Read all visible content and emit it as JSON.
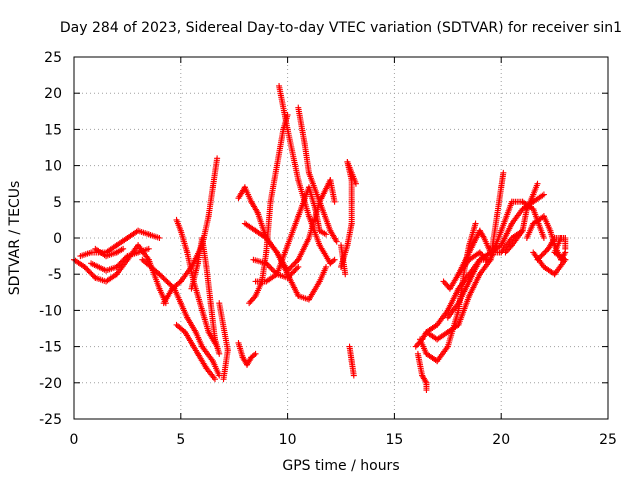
{
  "chart_data": {
    "type": "scatter",
    "title": "Day 284 of 2023, Sidereal Day-to-day VTEC variation (SDTVAR) for receiver sin1",
    "xlabel": "GPS time / hours",
    "ylabel": "SDTVAR / TECUs",
    "xlim": [
      0,
      25
    ],
    "ylim": [
      -25,
      25
    ],
    "xticks": [
      0,
      5,
      10,
      15,
      20,
      25
    ],
    "yticks": [
      -25,
      -20,
      -15,
      -10,
      -5,
      0,
      5,
      10,
      15,
      20,
      25
    ],
    "xtick_labels": [
      "0",
      "5",
      "10",
      "15",
      "20",
      "25"
    ],
    "ytick_labels": [
      "-25",
      "-20",
      "-15",
      "-10",
      "-5",
      "0",
      "5",
      "10",
      "15",
      "20",
      "25"
    ],
    "grid": true,
    "marker": "+",
    "series": [
      {
        "name": "sin1",
        "color": "#ff0000",
        "tracks": [
          [
            [
              0,
              -3
            ],
            [
              0.5,
              -4
            ],
            [
              1,
              -5.5
            ],
            [
              1.5,
              -6
            ],
            [
              2,
              -5
            ],
            [
              2.5,
              -3
            ],
            [
              3,
              -1
            ],
            [
              3.5,
              -3
            ],
            [
              4,
              -7
            ],
            [
              4.3,
              -9
            ]
          ],
          [
            [
              0.3,
              -2.5
            ],
            [
              0.8,
              -2
            ],
            [
              1.5,
              -2
            ],
            [
              2,
              -1
            ],
            [
              2.5,
              0
            ],
            [
              3,
              1
            ],
            [
              3.5,
              0.5
            ],
            [
              4,
              0
            ]
          ],
          [
            [
              0.8,
              -3.5
            ],
            [
              1.5,
              -4.5
            ],
            [
              2,
              -4
            ],
            [
              2.5,
              -2.5
            ],
            [
              3,
              -2
            ],
            [
              3.5,
              -1.5
            ]
          ],
          [
            [
              1,
              -1.5
            ],
            [
              1.5,
              -2.5
            ],
            [
              2,
              -2
            ],
            [
              2.3,
              -1.5
            ]
          ],
          [
            [
              4.2,
              -9
            ],
            [
              4.6,
              -7
            ],
            [
              5,
              -6
            ],
            [
              5.5,
              -4
            ],
            [
              6,
              -1
            ],
            [
              6.3,
              3
            ],
            [
              6.5,
              7
            ],
            [
              6.7,
              11
            ]
          ],
          [
            [
              3.2,
              -3
            ],
            [
              4,
              -5
            ],
            [
              4.7,
              -7
            ],
            [
              5,
              -9
            ],
            [
              5.3,
              -11
            ],
            [
              5.7,
              -13
            ],
            [
              6,
              -15
            ],
            [
              6.5,
              -17
            ],
            [
              6.8,
              -19
            ]
          ],
          [
            [
              4.8,
              -12
            ],
            [
              5.2,
              -13
            ],
            [
              5.8,
              -16
            ],
            [
              6.2,
              -18
            ],
            [
              6.6,
              -19.5
            ]
          ],
          [
            [
              5.5,
              -7
            ],
            [
              5.8,
              -3.5
            ],
            [
              6,
              0
            ],
            [
              6.2,
              -4
            ],
            [
              6.4,
              -9
            ],
            [
              6.6,
              -14
            ],
            [
              6.8,
              -16
            ]
          ],
          [
            [
              4.8,
              2.5
            ],
            [
              5,
              1
            ],
            [
              5.3,
              -2
            ],
            [
              5.6,
              -6
            ],
            [
              6,
              -10
            ],
            [
              6.3,
              -13
            ],
            [
              6.7,
              -15
            ]
          ],
          [
            [
              6.8,
              -9
            ],
            [
              7.2,
              -15.5
            ],
            [
              7,
              -19.5
            ]
          ],
          [
            [
              7.7,
              -14.5
            ],
            [
              7.9,
              -16.5
            ],
            [
              8.1,
              -17.5
            ],
            [
              8.3,
              -16.5
            ],
            [
              8.5,
              -16
            ]
          ],
          [
            [
              7.7,
              5.5
            ],
            [
              8,
              7
            ],
            [
              8.3,
              5
            ],
            [
              8.6,
              3.5
            ],
            [
              9,
              0
            ],
            [
              9.5,
              -2
            ],
            [
              10,
              -5
            ],
            [
              10.5,
              -8
            ],
            [
              11,
              -8.5
            ],
            [
              11.5,
              -6
            ],
            [
              11.8,
              -4
            ]
          ],
          [
            [
              8.2,
              -9
            ],
            [
              8.5,
              -8
            ],
            [
              8.8,
              -6
            ],
            [
              9,
              -2
            ],
            [
              9.2,
              5
            ],
            [
              9.5,
              10
            ],
            [
              9.8,
              15
            ],
            [
              10,
              17
            ]
          ],
          [
            [
              9.6,
              21
            ],
            [
              10,
              15
            ],
            [
              10.5,
              8
            ],
            [
              11,
              3
            ],
            [
              11.5,
              -1
            ],
            [
              12,
              -3.5
            ],
            [
              12.2,
              -3
            ]
          ],
          [
            [
              10.5,
              18
            ],
            [
              10.8,
              13
            ],
            [
              11,
              9
            ],
            [
              11.5,
              5
            ],
            [
              12,
              1
            ],
            [
              12.3,
              -0.5
            ]
          ],
          [
            [
              8.5,
              -6
            ],
            [
              9,
              -6
            ],
            [
              9.5,
              -5
            ],
            [
              10,
              -1
            ],
            [
              10.5,
              3
            ],
            [
              11,
              7
            ],
            [
              11.3,
              4
            ],
            [
              11.5,
              1
            ],
            [
              11.8,
              0.5
            ]
          ],
          [
            [
              8,
              2
            ],
            [
              8.5,
              1
            ],
            [
              9,
              0
            ],
            [
              9.5,
              -2
            ],
            [
              10,
              -4.5
            ],
            [
              10.5,
              -3
            ],
            [
              11,
              0
            ],
            [
              11.5,
              5
            ],
            [
              12,
              8
            ],
            [
              12.2,
              5
            ]
          ],
          [
            [
              8.4,
              -3
            ],
            [
              9,
              -3.5
            ],
            [
              9.5,
              -5
            ],
            [
              10,
              -5.5
            ],
            [
              10.5,
              -4
            ]
          ],
          [
            [
              12.5,
              -4
            ],
            [
              12.8,
              -1
            ],
            [
              13,
              2
            ],
            [
              13,
              5
            ],
            [
              13,
              8
            ],
            [
              12.8,
              10.5
            ],
            [
              13.2,
              7.5
            ]
          ],
          [
            [
              12.5,
              -1
            ],
            [
              12.7,
              -5
            ]
          ],
          [
            [
              12.9,
              -15
            ],
            [
              13,
              -17
            ],
            [
              13.1,
              -19
            ]
          ],
          [
            [
              16,
              -15
            ],
            [
              16.3,
              -14
            ],
            [
              16.5,
              -13
            ],
            [
              17,
              -12
            ],
            [
              17.5,
              -10
            ],
            [
              18,
              -7
            ],
            [
              18.5,
              -5
            ],
            [
              19,
              -3
            ],
            [
              19.5,
              -2
            ],
            [
              20,
              -2
            ],
            [
              20.5,
              0
            ],
            [
              21,
              1
            ]
          ],
          [
            [
              16.1,
              -16
            ],
            [
              16.3,
              -19
            ],
            [
              16.5,
              -20
            ],
            [
              16.5,
              -21
            ]
          ],
          [
            [
              16.2,
              -14
            ],
            [
              16.5,
              -16
            ],
            [
              17,
              -17
            ],
            [
              17.5,
              -15
            ],
            [
              18,
              -10
            ],
            [
              18.3,
              -4
            ],
            [
              18.5,
              -1
            ],
            [
              18.8,
              2
            ]
          ],
          [
            [
              16.5,
              -13
            ],
            [
              17,
              -14
            ],
            [
              17.5,
              -13
            ],
            [
              18,
              -12
            ],
            [
              18.5,
              -8
            ],
            [
              19,
              -5
            ],
            [
              19.5,
              -3
            ],
            [
              19.8,
              3
            ],
            [
              20,
              7
            ],
            [
              20.1,
              9
            ]
          ],
          [
            [
              17.5,
              -11
            ],
            [
              18,
              -9
            ],
            [
              18.5,
              -6
            ],
            [
              19,
              -3
            ],
            [
              19.5,
              -3
            ],
            [
              20,
              1
            ],
            [
              20.5,
              5
            ],
            [
              21,
              5
            ],
            [
              21.5,
              4
            ],
            [
              22,
              0
            ]
          ],
          [
            [
              18,
              -5
            ],
            [
              18.5,
              -2
            ],
            [
              19,
              1
            ],
            [
              19.2,
              0
            ],
            [
              19.5,
              -2
            ],
            [
              20,
              -1
            ],
            [
              20.5,
              2
            ],
            [
              21,
              4
            ],
            [
              21.5,
              5
            ],
            [
              22,
              6
            ]
          ],
          [
            [
              17.3,
              -6
            ],
            [
              17.6,
              -7
            ],
            [
              18,
              -5
            ],
            [
              18.5,
              -3
            ],
            [
              19,
              -2
            ],
            [
              19.3,
              -3
            ]
          ],
          [
            [
              20.2,
              -2
            ],
            [
              20.5,
              -1
            ],
            [
              21,
              1
            ],
            [
              21.2,
              4
            ],
            [
              21.5,
              6
            ],
            [
              21.7,
              7.5
            ]
          ],
          [
            [
              21.2,
              0
            ],
            [
              21.5,
              2
            ],
            [
              22,
              3
            ],
            [
              22.3,
              1
            ],
            [
              22.5,
              -1
            ],
            [
              22.8,
              -3
            ],
            [
              23,
              -2
            ]
          ],
          [
            [
              21.5,
              -2
            ],
            [
              22,
              -4
            ],
            [
              22.5,
              -5
            ],
            [
              23,
              -3
            ],
            [
              22.5,
              -2
            ],
            [
              22.8,
              0
            ]
          ],
          [
            [
              21.7,
              -3
            ],
            [
              22.2,
              -1.5
            ],
            [
              22.5,
              0
            ],
            [
              23,
              0
            ],
            [
              23,
              -1.5
            ]
          ]
        ]
      }
    ]
  }
}
